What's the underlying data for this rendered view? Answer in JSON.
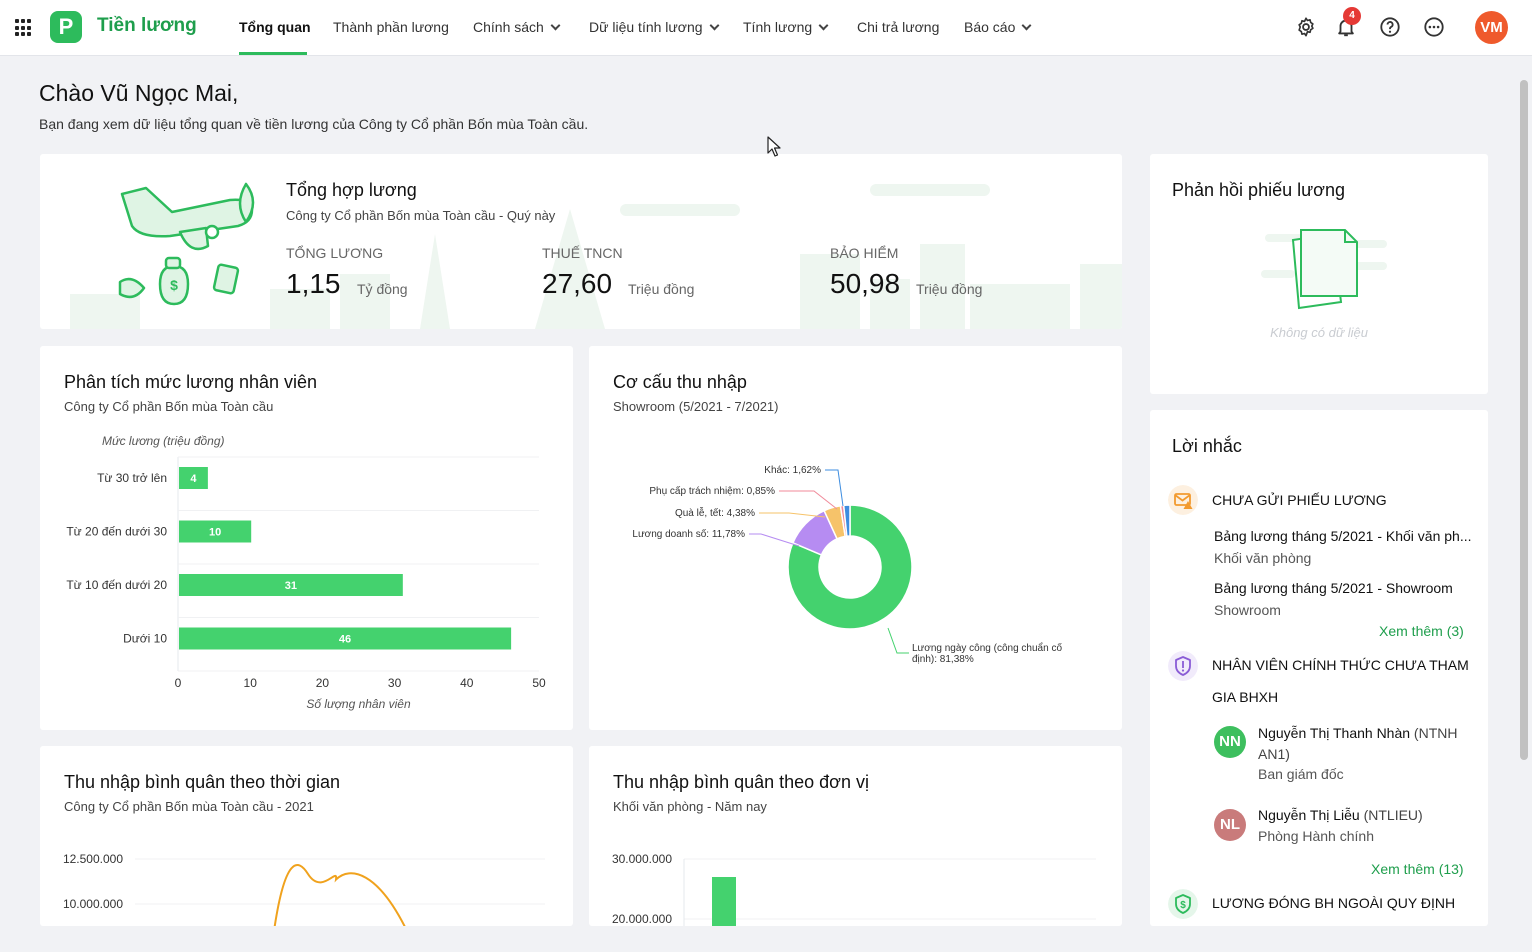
{
  "app": {
    "brand": "Tiền lương",
    "logo_letter": "P",
    "avatar_initials": "VM",
    "notification_count": "4",
    "accent": "#2dbb5c"
  },
  "nav": [
    {
      "label": "Tổng quan"
    },
    {
      "label": "Thành phần lương"
    },
    {
      "label": "Chính sách"
    },
    {
      "label": "Dữ liệu tính lương"
    },
    {
      "label": "Tính lương"
    },
    {
      "label": "Chi trả lương"
    },
    {
      "label": "Báo cáo"
    }
  ],
  "greeting": {
    "title": "Chào Vũ Ngọc Mai,",
    "subtitle": "Bạn đang xem dữ liệu tổng quan về tiền lương của Công ty Cổ phần Bốn mùa Toàn cầu."
  },
  "summary": {
    "title": "Tổng hợp lương",
    "subtitle": "Công ty Cổ phần Bốn mùa Toàn cầu - Quý này",
    "items": [
      {
        "label": "TỔNG LƯƠNG",
        "value": "1,15",
        "unit": "Tỷ đồng"
      },
      {
        "label": "THUẾ TNCN",
        "value": "27,60",
        "unit": "Triệu đồng"
      },
      {
        "label": "BẢO HIỂM",
        "value": "50,98",
        "unit": "Triệu đồng"
      }
    ]
  },
  "feedback": {
    "title": "Phản hồi phiếu lương",
    "empty_text": "Không có dữ liệu"
  },
  "salary_analysis": {
    "title": "Phân tích mức lương nhân viên",
    "subtitle": "Công ty Cổ phần Bốn mùa Toàn cầu"
  },
  "income_structure": {
    "title": "Cơ cấu thu nhập",
    "subtitle": "Showroom (5/2021 - 7/2021)"
  },
  "avg_time": {
    "title": "Thu nhập bình quân theo thời gian",
    "subtitle": "Công ty Cổ phần Bốn mùa Toàn cầu - 2021"
  },
  "avg_unit": {
    "title": "Thu nhập bình quân theo đơn vị",
    "subtitle": "Khối văn phòng - Năm nay"
  },
  "chart_data": [
    {
      "type": "bar",
      "orientation": "horizontal",
      "categories": [
        "Từ 30 trở lên",
        "Từ 20 đến dưới 30",
        "Từ 10 đến dưới 20",
        "Dưới 10"
      ],
      "values": [
        4,
        10,
        31,
        46
      ],
      "ylabel": "Mức lương (triệu đồng)",
      "xlabel": "Số lượng nhân viên",
      "xlim": [
        0,
        50
      ],
      "xticks": [
        0,
        10,
        20,
        30,
        40,
        50
      ],
      "color": "#44d26e"
    },
    {
      "type": "pie",
      "donut": true,
      "slices": [
        {
          "label": "Lương ngày công (công chuẩn cố định): 81,38%",
          "value": 81.38,
          "color": "#44d26e"
        },
        {
          "label": "Lương doanh số: 11,78%",
          "value": 11.78,
          "color": "#b68cf2"
        },
        {
          "label": "Quà lễ, tết: 4,38%",
          "value": 4.38,
          "color": "#f6c36a"
        },
        {
          "label": "Phụ cấp trách nhiệm: 0,85%",
          "value": 0.85,
          "color": "#f08a9a"
        },
        {
          "label": "Khác: 1,62%",
          "value": 1.62,
          "color": "#3d8de0"
        }
      ]
    },
    {
      "type": "line",
      "yticks": [
        "12.500.000",
        "10.000.000"
      ],
      "series": [
        {
          "values": [
            null,
            null,
            12000000,
            9000000,
            11800000,
            9000000
          ]
        }
      ],
      "color": "#f0a21d"
    },
    {
      "type": "bar",
      "yticks": [
        "30.000.000",
        "20.000.000"
      ],
      "values": [
        27000000
      ],
      "color": "#44d26e"
    }
  ],
  "reminders": {
    "title": "Lời nhắc",
    "groups": [
      {
        "heading": "CHƯA GỬI PHIẾU LƯƠNG",
        "items": [
          {
            "name": "Bảng lương tháng 5/2021 - Khối văn ph...",
            "sub": "Khối văn phòng"
          },
          {
            "name": "Bảng lương tháng 5/2021 - Showroom",
            "sub": "Showroom"
          }
        ],
        "more": "Xem thêm (3)"
      },
      {
        "heading": "NHÂN VIÊN CHÍNH THỨC CHƯA THAM GIA BHXH",
        "items": [
          {
            "initials": "NN",
            "name": "Nguyễn Thị Thanh Nhàn",
            "code": " (NTNH AN1)",
            "sub": "Ban giám đốc",
            "color": "#3dbf5e"
          },
          {
            "initials": "NL",
            "name": "Nguyễn Thị Liễu",
            "code": " (NTLIEU)",
            "sub": "Phòng Hành chính",
            "color": "#c97b7b"
          }
        ],
        "more": "Xem thêm (13)"
      },
      {
        "heading": "LƯƠNG ĐÓNG BH NGOÀI QUY ĐỊNH"
      }
    ]
  }
}
